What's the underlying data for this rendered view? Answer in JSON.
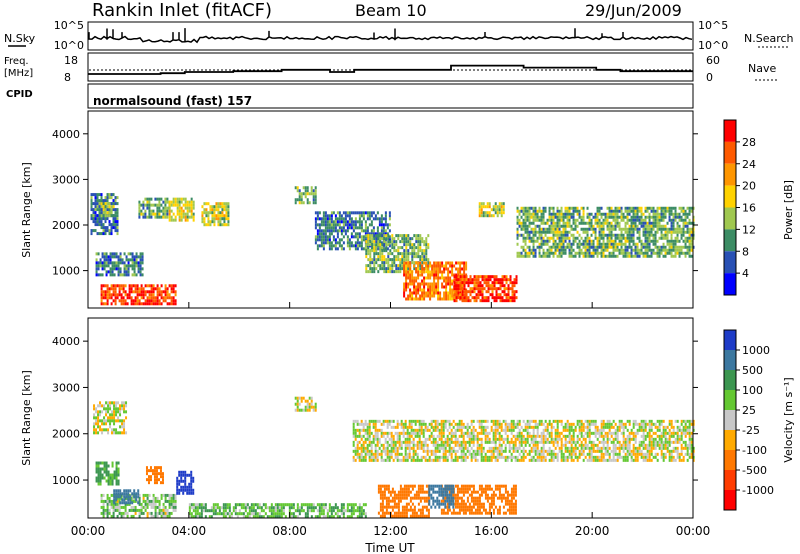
{
  "header": {
    "station": "Rankin Inlet (fitACF)",
    "beam": "Beam 10",
    "date": "29/Jun/2009"
  },
  "noise_panel": {
    "left_label": "N.Sky",
    "right_label": "N.Search",
    "left_ticks": [
      "10^5",
      "10^0"
    ],
    "right_ticks": [
      "10^5",
      "10^0"
    ]
  },
  "freq_panel": {
    "label_line1": "Freq.",
    "label_line2": "[MHz]",
    "left_ticks": [
      "18",
      "8"
    ],
    "right_ticks": [
      "60",
      "0"
    ],
    "right_label": "Nave",
    "freq_mhz": [
      10.5,
      10.5,
      10.5,
      10.8,
      11.2,
      11.2,
      11.5,
      11.5,
      12,
      12,
      11.2,
      12,
      12,
      12,
      12,
      13.5,
      13.5,
      13.5,
      12.8,
      12.8,
      12.8,
      12,
      11.5,
      11.5,
      11.5
    ]
  },
  "cpid": {
    "label": "CPID",
    "mode": "normalsound (fast) 157"
  },
  "axes": {
    "ylabel": "Slant Range [km]",
    "xlabel": "Time UT",
    "y_ticks": [
      "1000",
      "2000",
      "3000",
      "4000"
    ],
    "x_ticks": [
      "00:00",
      "04:00",
      "08:00",
      "12:00",
      "16:00",
      "20:00",
      "00:00"
    ]
  },
  "power_scale": {
    "title": "Power [dB]",
    "labels": [
      "28",
      "24",
      "20",
      "16",
      "12",
      "8",
      "4"
    ],
    "colors": [
      "#ff0000",
      "#ff5a00",
      "#ff9600",
      "#ffd200",
      "#a0c850",
      "#3c8c64",
      "#2850b4",
      "#0000ff"
    ]
  },
  "velocity_scale": {
    "title": "Velocity [m s⁻¹]",
    "labels": [
      "1000",
      "500",
      "100",
      "25",
      "-25",
      "-100",
      "-500",
      "-1000"
    ],
    "colors": [
      "#1e3cc8",
      "#3c78a0",
      "#3c9650",
      "#64c832",
      "#c8c8c8",
      "#ffaa00",
      "#ff7800",
      "#ff3c00",
      "#ff0000"
    ]
  },
  "chart_data": {
    "type": "heatmap",
    "x_unit": "hours UT",
    "y_unit": "km",
    "xlim": [
      0,
      24
    ],
    "ylim": [
      180,
      4500
    ],
    "power_regions": [
      {
        "t0": 0.1,
        "t1": 1.2,
        "r0": 1800,
        "r1": 2700,
        "power_db": 8
      },
      {
        "t0": 0.5,
        "t1": 1.0,
        "r0": 2200,
        "r1": 2500,
        "power_db": 16
      },
      {
        "t0": 0.3,
        "t1": 2.2,
        "r0": 900,
        "r1": 1400,
        "power_db": 8
      },
      {
        "t0": 0.5,
        "t1": 3.5,
        "r0": 250,
        "r1": 700,
        "power_db": 28
      },
      {
        "t0": 2.0,
        "t1": 3.2,
        "r0": 2200,
        "r1": 2600,
        "power_db": 12
      },
      {
        "t0": 3.2,
        "t1": 4.2,
        "r0": 2100,
        "r1": 2600,
        "power_db": 16
      },
      {
        "t0": 4.5,
        "t1": 5.6,
        "r0": 2000,
        "r1": 2500,
        "power_db": 16
      },
      {
        "t0": 8.2,
        "t1": 9.0,
        "r0": 2500,
        "r1": 2850,
        "power_db": 12
      },
      {
        "t0": 9.0,
        "t1": 12.0,
        "r0": 1500,
        "r1": 2300,
        "power_db": 8
      },
      {
        "t0": 11.0,
        "t1": 13.5,
        "r0": 1000,
        "r1": 1800,
        "power_db": 12
      },
      {
        "t0": 12.5,
        "t1": 15.0,
        "r0": 400,
        "r1": 1200,
        "power_db": 24
      },
      {
        "t0": 14.5,
        "t1": 17.0,
        "r0": 350,
        "r1": 900,
        "power_db": 28
      },
      {
        "t0": 15.5,
        "t1": 16.5,
        "r0": 2200,
        "r1": 2500,
        "power_db": 16
      },
      {
        "t0": 17.0,
        "t1": 24.0,
        "r0": 1300,
        "r1": 2400,
        "power_db": 12
      }
    ],
    "velocity_regions": [
      {
        "t0": 0.2,
        "t1": 1.5,
        "r0": 2000,
        "r1": 2700,
        "vel": 0
      },
      {
        "t0": 0.3,
        "t1": 1.2,
        "r0": 900,
        "r1": 1400,
        "vel": 150
      },
      {
        "t0": 0.5,
        "t1": 3.5,
        "r0": 200,
        "r1": 700,
        "vel": 50
      },
      {
        "t0": 1.0,
        "t1": 2.0,
        "r0": 500,
        "r1": 800,
        "vel": 600
      },
      {
        "t0": 2.3,
        "t1": 3.0,
        "r0": 950,
        "r1": 1300,
        "vel": -200
      },
      {
        "t0": 3.5,
        "t1": 4.2,
        "r0": 700,
        "r1": 1200,
        "vel": 1100
      },
      {
        "t0": 8.2,
        "t1": 9.0,
        "r0": 2500,
        "r1": 2800,
        "vel": 0
      },
      {
        "t0": 10.5,
        "t1": 24.0,
        "r0": 1400,
        "r1": 2300,
        "vel": 0
      },
      {
        "t0": 11.5,
        "t1": 13.5,
        "r0": 200,
        "r1": 900,
        "vel": -300
      },
      {
        "t0": 14.0,
        "t1": 17.0,
        "r0": 300,
        "r1": 900,
        "vel": -200
      },
      {
        "t0": 13.5,
        "t1": 14.5,
        "r0": 400,
        "r1": 900,
        "vel": 600
      },
      {
        "t0": 4.0,
        "t1": 11.0,
        "r0": 200,
        "r1": 500,
        "vel": 80
      }
    ]
  }
}
